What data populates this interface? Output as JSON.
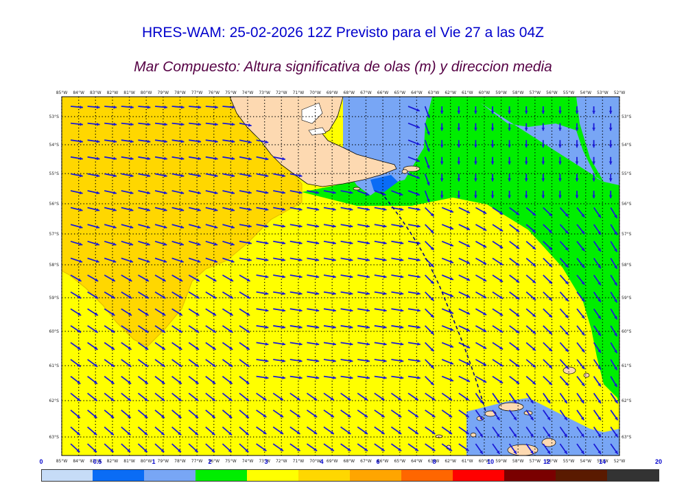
{
  "title": "HRES-WAM: 25-02-2026 12Z Previsto para el Vie 27 a las 04Z",
  "subtitle": "Mar Compuesto: Altura significativa de olas (m) y direccion media",
  "map": {
    "lon_labels": [
      "85°W",
      "84°W",
      "83°W",
      "82°W",
      "81°W",
      "80°W",
      "79°W",
      "78°W",
      "77°W",
      "76°W",
      "75°W",
      "74°W",
      "73°W",
      "72°W",
      "71°W",
      "70°W",
      "69°W",
      "68°W",
      "67°W",
      "66°W",
      "65°W",
      "64°W",
      "63°W",
      "62°W",
      "61°W",
      "60°W",
      "59°W",
      "58°W",
      "57°W",
      "56°W",
      "55°W",
      "54°W",
      "53°W",
      "52°W"
    ],
    "lat_labels": [
      "53°S",
      "54°S",
      "55°S",
      "56°S",
      "57°S",
      "58°S",
      "59°S",
      "60°S",
      "61°S",
      "62°S",
      "63°S"
    ]
  },
  "colorbar": {
    "ticks": [
      "0",
      "0.5",
      "1",
      "2",
      "3",
      "4",
      "6",
      "8",
      "10",
      "12",
      "14",
      "20"
    ],
    "colors": [
      "#c6dcf7",
      "#0a6cf5",
      "#78a6f5",
      "#00ee00",
      "#ffff00",
      "#ffd700",
      "#ffa500",
      "#ff6600",
      "#ff0000",
      "#7a0000",
      "#5a1a00",
      "#333333"
    ]
  },
  "colors": {
    "land": "#fdd9b1",
    "arrow": "#1a1ad6",
    "grid": "#000000",
    "track": "#000088"
  }
}
